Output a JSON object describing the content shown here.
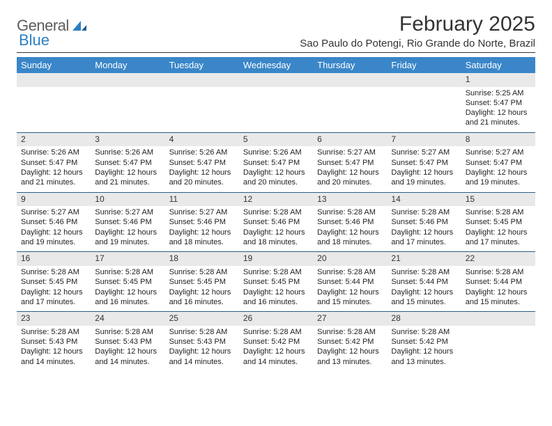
{
  "logo": {
    "text1": "General",
    "text2": "Blue"
  },
  "title": "February 2025",
  "location": "Sao Paulo do Potengi, Rio Grande do Norte, Brazil",
  "colors": {
    "header_bg": "#3a86c8",
    "header_text": "#ffffff",
    "week_divider": "#2a5d8a",
    "daynum_bg": "#e9e9e9",
    "body_text": "#222222",
    "logo_gray": "#5c5c5c",
    "logo_blue": "#2d7fc1"
  },
  "days_of_week": [
    "Sunday",
    "Monday",
    "Tuesday",
    "Wednesday",
    "Thursday",
    "Friday",
    "Saturday"
  ],
  "weeks": [
    [
      null,
      null,
      null,
      null,
      null,
      null,
      {
        "n": "1",
        "sr": "Sunrise: 5:25 AM",
        "ss": "Sunset: 5:47 PM",
        "dl1": "Daylight: 12 hours",
        "dl2": "and 21 minutes."
      }
    ],
    [
      {
        "n": "2",
        "sr": "Sunrise: 5:26 AM",
        "ss": "Sunset: 5:47 PM",
        "dl1": "Daylight: 12 hours",
        "dl2": "and 21 minutes."
      },
      {
        "n": "3",
        "sr": "Sunrise: 5:26 AM",
        "ss": "Sunset: 5:47 PM",
        "dl1": "Daylight: 12 hours",
        "dl2": "and 21 minutes."
      },
      {
        "n": "4",
        "sr": "Sunrise: 5:26 AM",
        "ss": "Sunset: 5:47 PM",
        "dl1": "Daylight: 12 hours",
        "dl2": "and 20 minutes."
      },
      {
        "n": "5",
        "sr": "Sunrise: 5:26 AM",
        "ss": "Sunset: 5:47 PM",
        "dl1": "Daylight: 12 hours",
        "dl2": "and 20 minutes."
      },
      {
        "n": "6",
        "sr": "Sunrise: 5:27 AM",
        "ss": "Sunset: 5:47 PM",
        "dl1": "Daylight: 12 hours",
        "dl2": "and 20 minutes."
      },
      {
        "n": "7",
        "sr": "Sunrise: 5:27 AM",
        "ss": "Sunset: 5:47 PM",
        "dl1": "Daylight: 12 hours",
        "dl2": "and 19 minutes."
      },
      {
        "n": "8",
        "sr": "Sunrise: 5:27 AM",
        "ss": "Sunset: 5:47 PM",
        "dl1": "Daylight: 12 hours",
        "dl2": "and 19 minutes."
      }
    ],
    [
      {
        "n": "9",
        "sr": "Sunrise: 5:27 AM",
        "ss": "Sunset: 5:46 PM",
        "dl1": "Daylight: 12 hours",
        "dl2": "and 19 minutes."
      },
      {
        "n": "10",
        "sr": "Sunrise: 5:27 AM",
        "ss": "Sunset: 5:46 PM",
        "dl1": "Daylight: 12 hours",
        "dl2": "and 19 minutes."
      },
      {
        "n": "11",
        "sr": "Sunrise: 5:27 AM",
        "ss": "Sunset: 5:46 PM",
        "dl1": "Daylight: 12 hours",
        "dl2": "and 18 minutes."
      },
      {
        "n": "12",
        "sr": "Sunrise: 5:28 AM",
        "ss": "Sunset: 5:46 PM",
        "dl1": "Daylight: 12 hours",
        "dl2": "and 18 minutes."
      },
      {
        "n": "13",
        "sr": "Sunrise: 5:28 AM",
        "ss": "Sunset: 5:46 PM",
        "dl1": "Daylight: 12 hours",
        "dl2": "and 18 minutes."
      },
      {
        "n": "14",
        "sr": "Sunrise: 5:28 AM",
        "ss": "Sunset: 5:46 PM",
        "dl1": "Daylight: 12 hours",
        "dl2": "and 17 minutes."
      },
      {
        "n": "15",
        "sr": "Sunrise: 5:28 AM",
        "ss": "Sunset: 5:45 PM",
        "dl1": "Daylight: 12 hours",
        "dl2": "and 17 minutes."
      }
    ],
    [
      {
        "n": "16",
        "sr": "Sunrise: 5:28 AM",
        "ss": "Sunset: 5:45 PM",
        "dl1": "Daylight: 12 hours",
        "dl2": "and 17 minutes."
      },
      {
        "n": "17",
        "sr": "Sunrise: 5:28 AM",
        "ss": "Sunset: 5:45 PM",
        "dl1": "Daylight: 12 hours",
        "dl2": "and 16 minutes."
      },
      {
        "n": "18",
        "sr": "Sunrise: 5:28 AM",
        "ss": "Sunset: 5:45 PM",
        "dl1": "Daylight: 12 hours",
        "dl2": "and 16 minutes."
      },
      {
        "n": "19",
        "sr": "Sunrise: 5:28 AM",
        "ss": "Sunset: 5:45 PM",
        "dl1": "Daylight: 12 hours",
        "dl2": "and 16 minutes."
      },
      {
        "n": "20",
        "sr": "Sunrise: 5:28 AM",
        "ss": "Sunset: 5:44 PM",
        "dl1": "Daylight: 12 hours",
        "dl2": "and 15 minutes."
      },
      {
        "n": "21",
        "sr": "Sunrise: 5:28 AM",
        "ss": "Sunset: 5:44 PM",
        "dl1": "Daylight: 12 hours",
        "dl2": "and 15 minutes."
      },
      {
        "n": "22",
        "sr": "Sunrise: 5:28 AM",
        "ss": "Sunset: 5:44 PM",
        "dl1": "Daylight: 12 hours",
        "dl2": "and 15 minutes."
      }
    ],
    [
      {
        "n": "23",
        "sr": "Sunrise: 5:28 AM",
        "ss": "Sunset: 5:43 PM",
        "dl1": "Daylight: 12 hours",
        "dl2": "and 14 minutes."
      },
      {
        "n": "24",
        "sr": "Sunrise: 5:28 AM",
        "ss": "Sunset: 5:43 PM",
        "dl1": "Daylight: 12 hours",
        "dl2": "and 14 minutes."
      },
      {
        "n": "25",
        "sr": "Sunrise: 5:28 AM",
        "ss": "Sunset: 5:43 PM",
        "dl1": "Daylight: 12 hours",
        "dl2": "and 14 minutes."
      },
      {
        "n": "26",
        "sr": "Sunrise: 5:28 AM",
        "ss": "Sunset: 5:42 PM",
        "dl1": "Daylight: 12 hours",
        "dl2": "and 14 minutes."
      },
      {
        "n": "27",
        "sr": "Sunrise: 5:28 AM",
        "ss": "Sunset: 5:42 PM",
        "dl1": "Daylight: 12 hours",
        "dl2": "and 13 minutes."
      },
      {
        "n": "28",
        "sr": "Sunrise: 5:28 AM",
        "ss": "Sunset: 5:42 PM",
        "dl1": "Daylight: 12 hours",
        "dl2": "and 13 minutes."
      },
      null
    ]
  ]
}
